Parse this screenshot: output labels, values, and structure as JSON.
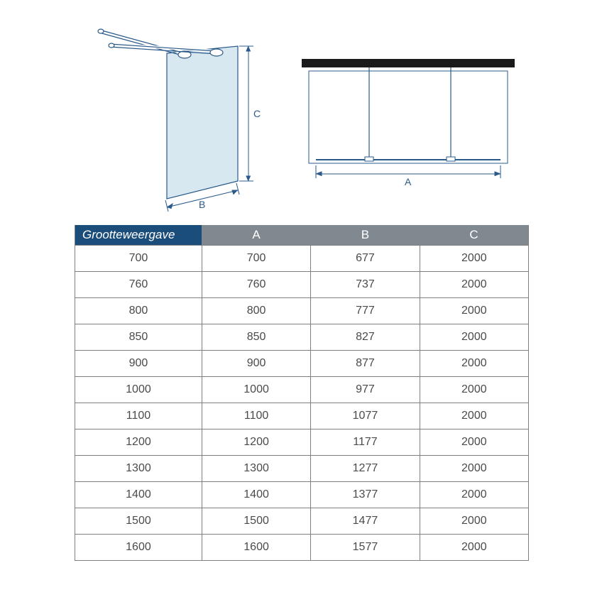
{
  "diagram": {
    "stroke": "#2a5a8a",
    "glass_fill": "#d8e8f0",
    "labels": {
      "A": "A",
      "B": "B",
      "C": "C"
    }
  },
  "table": {
    "header_first_bg": "#1a4d7a",
    "header_rest_bg": "#808890",
    "border_color": "#808080",
    "text_color": "#4a4a4a",
    "columns": [
      "Grootteweergave",
      "A",
      "B",
      "C"
    ],
    "rows": [
      [
        "700",
        "700",
        "677",
        "2000"
      ],
      [
        "760",
        "760",
        "737",
        "2000"
      ],
      [
        "800",
        "800",
        "777",
        "2000"
      ],
      [
        "850",
        "850",
        "827",
        "2000"
      ],
      [
        "900",
        "900",
        "877",
        "2000"
      ],
      [
        "1000",
        "1000",
        "977",
        "2000"
      ],
      [
        "1100",
        "1100",
        "1077",
        "2000"
      ],
      [
        "1200",
        "1200",
        "1177",
        "2000"
      ],
      [
        "1300",
        "1300",
        "1277",
        "2000"
      ],
      [
        "1400",
        "1400",
        "1377",
        "2000"
      ],
      [
        "1500",
        "1500",
        "1477",
        "2000"
      ],
      [
        "1600",
        "1600",
        "1577",
        "2000"
      ]
    ]
  }
}
